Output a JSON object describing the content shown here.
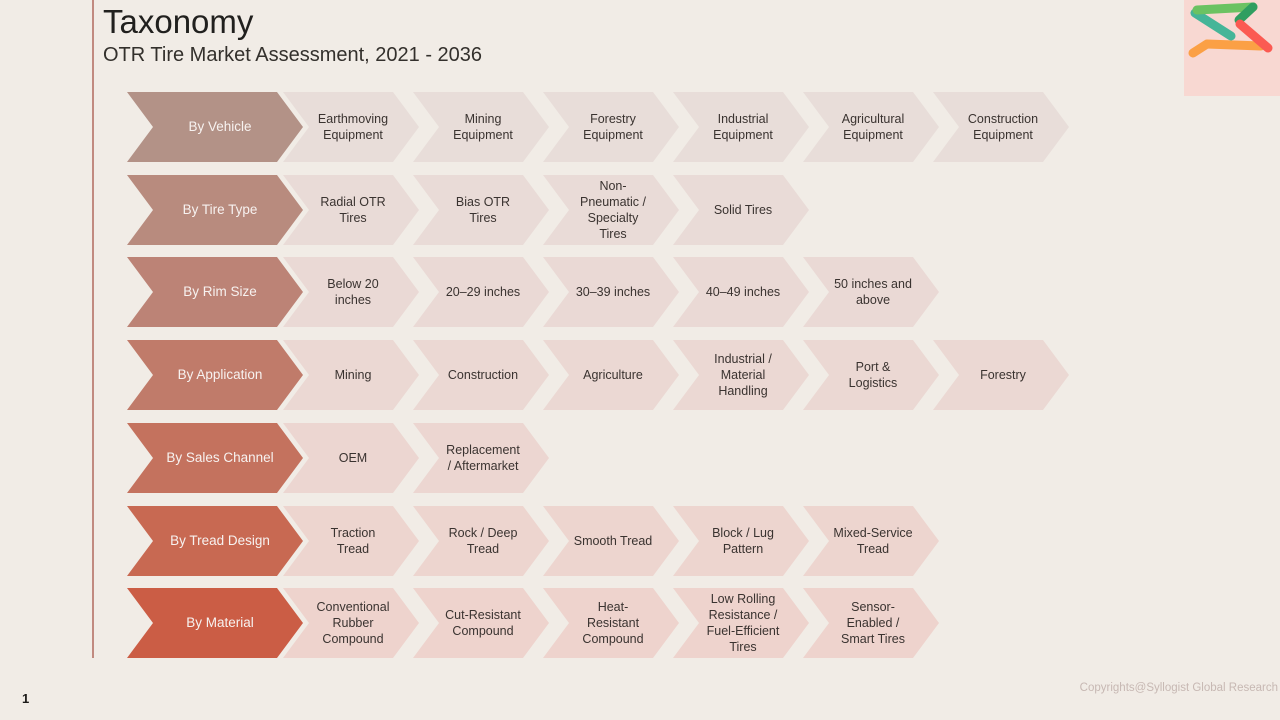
{
  "slide": {
    "title": "Taxonomy",
    "subtitle": "OTR Tire Market Assessment, 2021 - 2036",
    "page_number": "1",
    "footer": "Copyrights@Syllogist Global Research",
    "background_color": "#f1ece6",
    "accent_line_color": "#c18a80"
  },
  "logo": {
    "name": "syllogist-logo",
    "panel_color": "#f8d8d2",
    "stroke_colors": {
      "light_green": "#6cc262",
      "dark_green": "#2f9e60",
      "teal": "#45b598",
      "red": "#fb5a52",
      "orange": "#fba045"
    }
  },
  "taxonomy": {
    "rows": [
      {
        "label": "By Vehicle",
        "label_color": "#b39287",
        "item_color": "#e8ddd9",
        "items": [
          "Earthmoving Equipment",
          "Mining Equipment",
          "Forestry Equipment",
          "Industrial Equipment",
          "Agricultural Equipment",
          "Construction Equipment"
        ]
      },
      {
        "label": "By Tire Type",
        "label_color": "#b88b7e",
        "item_color": "#e9dbd7",
        "items": [
          "Radial OTR Tires",
          "Bias OTR Tires",
          "Non-Pneumatic / Specialty Tires",
          "Solid Tires"
        ]
      },
      {
        "label": "By Rim Size",
        "label_color": "#bc8376",
        "item_color": "#ead9d5",
        "items": [
          "Below 20 inches",
          "20–29 inches",
          "30–39 inches",
          "40–49 inches",
          "50 inches and above"
        ]
      },
      {
        "label": "By Application",
        "label_color": "#c07b6a",
        "item_color": "#ebd8d3",
        "items": [
          "Mining",
          "Construction",
          "Agriculture",
          "Industrial / Material Handling",
          "Port & Logistics",
          "Forestry"
        ]
      },
      {
        "label": "By Sales Channel",
        "label_color": "#c4725e",
        "item_color": "#ecd6d1",
        "items": [
          "OEM",
          "Replacement / Aftermarket"
        ]
      },
      {
        "label": "By Tread Design",
        "label_color": "#c86952",
        "item_color": "#edd5cf",
        "items": [
          "Traction Tread",
          "Rock / Deep Tread",
          "Smooth Tread",
          "Block / Lug Pattern",
          "Mixed-Service Tread"
        ]
      },
      {
        "label": "By Material",
        "label_color": "#cb5d45",
        "item_color": "#eed3cd",
        "items": [
          "Conventional Rubber Compound",
          "Cut-Resistant Compound",
          "Heat-Resistant Compound",
          "Low Rolling Resistance / Fuel-Efficient Tires",
          "Sensor-Enabled / Smart Tires"
        ]
      }
    ]
  }
}
